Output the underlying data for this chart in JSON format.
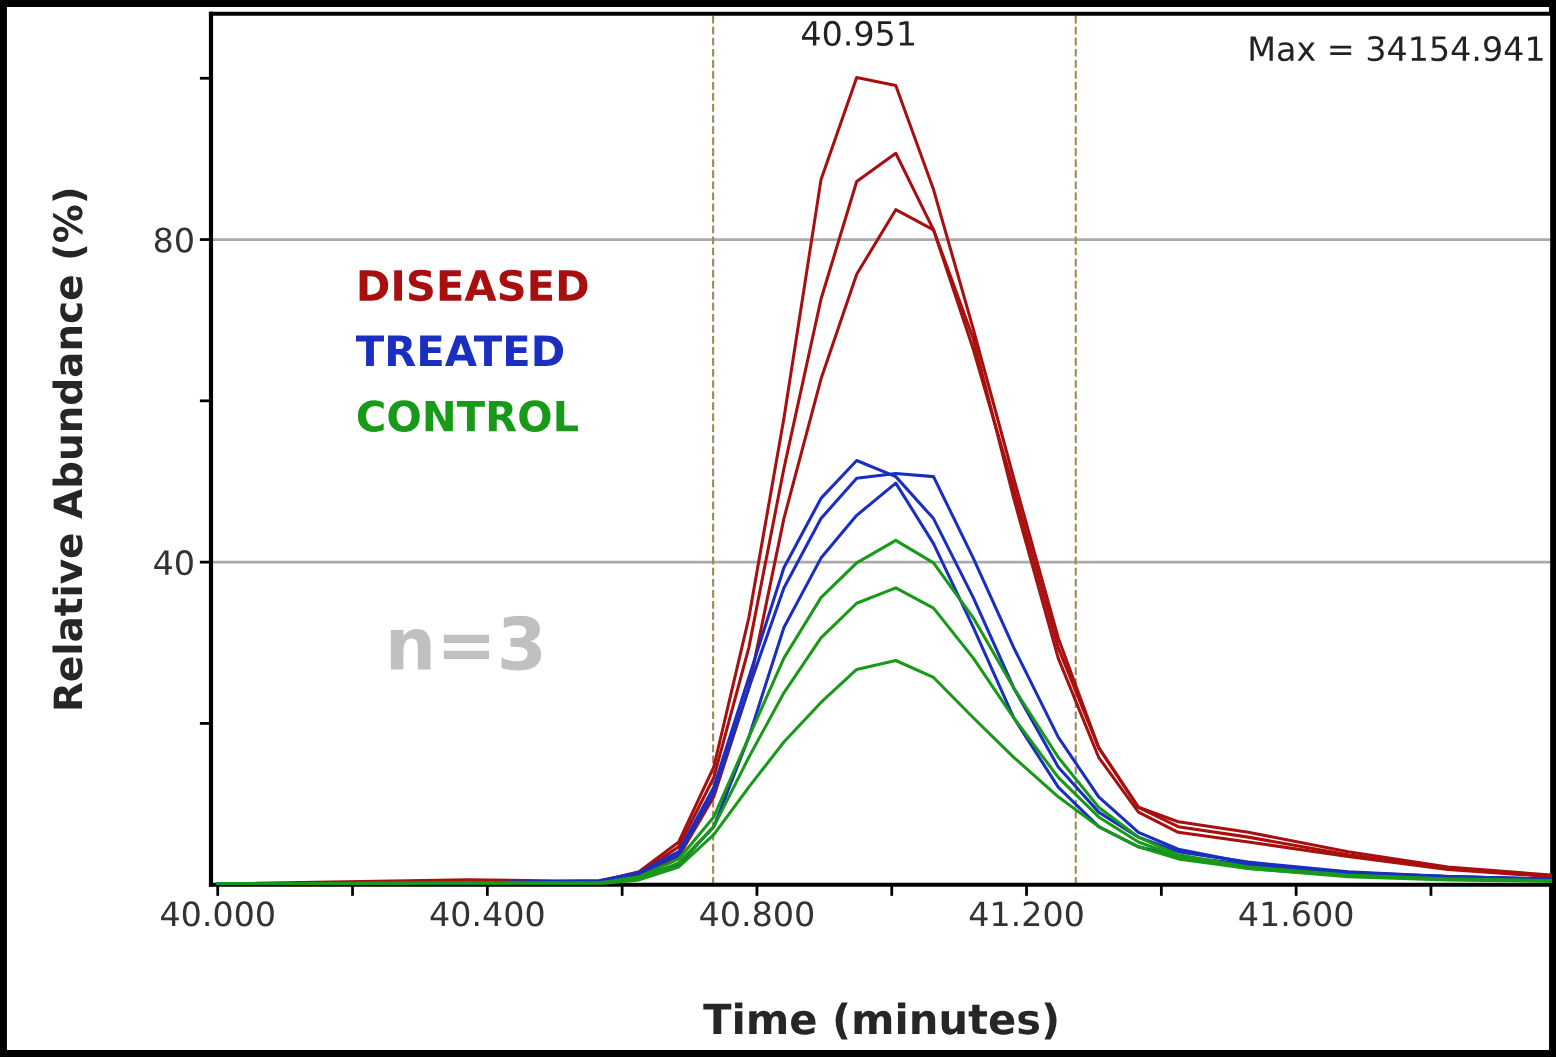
{
  "chart_data": {
    "type": "line",
    "xlabel": "Time (minutes)",
    "ylabel": "Relative Abundance (%)",
    "x": [
      40.0,
      40.373,
      40.566,
      40.625,
      40.684,
      40.736,
      40.788,
      40.84,
      40.895,
      40.948,
      41.006,
      41.062,
      41.121,
      41.181,
      41.247,
      41.307,
      41.366,
      41.425,
      41.529,
      41.677,
      41.825,
      41.978
    ],
    "xlim": [
      39.99,
      41.98
    ],
    "ylim": [
      0,
      108
    ],
    "xticks": [
      {
        "value": 40.0,
        "label": "40.000"
      },
      {
        "value": 40.2,
        "label": null
      },
      {
        "value": 40.4,
        "label": "40.400"
      },
      {
        "value": 40.6,
        "label": null
      },
      {
        "value": 40.8,
        "label": "40.800"
      },
      {
        "value": 41.0,
        "label": null
      },
      {
        "value": 41.2,
        "label": "41.200"
      },
      {
        "value": 41.4,
        "label": null
      },
      {
        "value": 41.6,
        "label": "41.600"
      },
      {
        "value": 41.8,
        "label": null
      }
    ],
    "yticks": [
      {
        "value": 20,
        "label": null
      },
      40,
      {
        "value": 60,
        "label": null
      },
      80,
      {
        "value": 100,
        "label": null
      }
    ],
    "grid": "y",
    "legend": "top left",
    "marker": "none",
    "line_style": "solid",
    "series": [
      {
        "name": "DISEASED",
        "color": "#a81010",
        "values": [
          0.1,
          0.6,
          0.4,
          1.6,
          5.3,
          14.6,
          33.1,
          57.8,
          87.4,
          100.1,
          99.1,
          86.2,
          68.9,
          50.4,
          30.6,
          17.0,
          9.6,
          7.8,
          6.5,
          4.1,
          2.2,
          1.2
        ]
      },
      {
        "color": "#a81010",
        "values": [
          0.1,
          0.2,
          0.4,
          1.4,
          4.7,
          13.3,
          29.4,
          51.6,
          72.6,
          87.2,
          90.7,
          81.2,
          66.4,
          49.1,
          29.4,
          17.0,
          9.6,
          7.2,
          5.9,
          3.7,
          2.0,
          1.1
        ]
      },
      {
        "color": "#a81010",
        "values": [
          0.1,
          0.2,
          0.4,
          1.2,
          3.5,
          10.9,
          24.4,
          45.4,
          62.7,
          75.7,
          83.7,
          81.2,
          67.7,
          47.9,
          28.1,
          15.8,
          9.0,
          6.5,
          5.3,
          3.5,
          1.9,
          1.0
        ]
      },
      {
        "name": "TREATED",
        "color": "#1a2fc0",
        "values": [
          0.1,
          0.2,
          0.5,
          1.5,
          4.1,
          12.1,
          25.7,
          39.3,
          47.9,
          52.6,
          50.6,
          45.4,
          35.6,
          24.4,
          14.6,
          9.0,
          5.9,
          4.1,
          2.8,
          1.6,
          1.0,
          0.7
        ]
      },
      {
        "color": "#1a2fc0",
        "values": [
          0.1,
          0.2,
          0.5,
          1.4,
          3.7,
          11.4,
          24.4,
          36.8,
          45.4,
          50.4,
          51.0,
          50.6,
          40.5,
          29.4,
          18.3,
          10.9,
          6.5,
          4.4,
          2.7,
          1.5,
          1.0,
          0.7
        ]
      },
      {
        "color": "#1a2fc0",
        "values": [
          0.1,
          0.2,
          0.4,
          1.0,
          2.5,
          7.2,
          18.3,
          31.9,
          40.5,
          45.8,
          49.8,
          42.3,
          31.9,
          20.7,
          12.1,
          7.2,
          4.7,
          3.5,
          2.5,
          1.4,
          1.0,
          0.7
        ]
      },
      {
        "name": "CONTROL",
        "color": "#189a18",
        "values": [
          0.1,
          0.2,
          0.2,
          1.0,
          3.2,
          8.4,
          18.3,
          28.1,
          35.6,
          39.9,
          42.7,
          39.9,
          33.1,
          24.4,
          15.8,
          9.6,
          5.9,
          3.7,
          2.2,
          1.2,
          0.7,
          0.5
        ]
      },
      {
        "color": "#189a18",
        "values": [
          0.1,
          0.2,
          0.2,
          0.7,
          2.7,
          7.2,
          15.8,
          23.8,
          30.6,
          34.9,
          36.8,
          34.3,
          28.1,
          20.7,
          13.3,
          8.4,
          5.3,
          3.5,
          2.0,
          1.1,
          0.7,
          0.5
        ]
      },
      {
        "color": "#189a18",
        "values": [
          0.1,
          0.2,
          0.1,
          0.6,
          2.2,
          6.2,
          12.1,
          17.7,
          22.6,
          26.7,
          27.8,
          25.7,
          20.7,
          15.8,
          10.9,
          7.2,
          4.7,
          3.2,
          2.0,
          1.0,
          0.6,
          0.4
        ]
      }
    ],
    "ref_lines": [
      {
        "axis": "x",
        "value": 40.735,
        "color": "#a08850",
        "line_style": "dashed"
      },
      {
        "axis": "x",
        "value": 41.273,
        "color": "#a08850",
        "line_style": "dashed"
      }
    ],
    "annotations": [
      {
        "text": "40.951",
        "x": 40.951,
        "y": 100.1
      },
      "Max = 34154.941",
      "n=3"
    ]
  }
}
